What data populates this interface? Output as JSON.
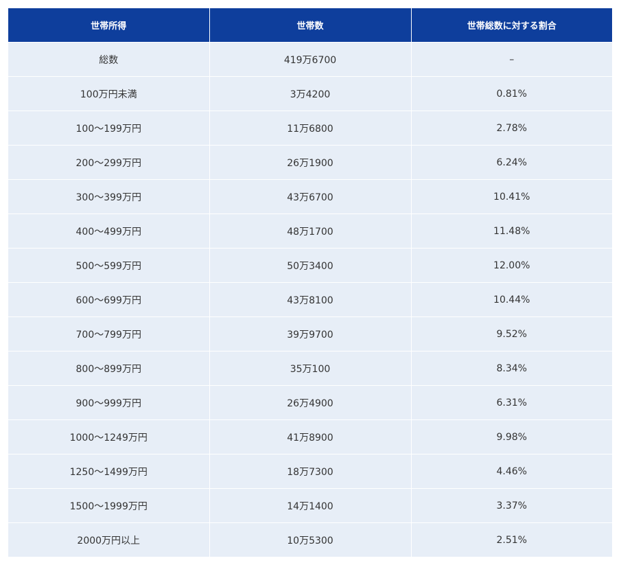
{
  "table": {
    "headers": [
      "世帯所得",
      "世帯数",
      "世帯総数に対する割合"
    ],
    "rows": [
      [
        "総数",
        "419万6700",
        "–"
      ],
      [
        "100万円未満",
        "3万4200",
        "0.81%"
      ],
      [
        "100～199万円",
        "11万6800",
        "2.78%"
      ],
      [
        "200～299万円",
        "26万1900",
        "6.24%"
      ],
      [
        "300～399万円",
        "43万6700",
        "10.41%"
      ],
      [
        "400～499万円",
        "48万1700",
        "11.48%"
      ],
      [
        "500～599万円",
        "50万3400",
        "12.00%"
      ],
      [
        "600～699万円",
        "43万8100",
        "10.44%"
      ],
      [
        "700～799万円",
        "39万9700",
        "9.52%"
      ],
      [
        "800～899万円",
        "35万100",
        "8.34%"
      ],
      [
        "900～999万円",
        "26万4900",
        "6.31%"
      ],
      [
        "1000～1249万円",
        "41万8900",
        "9.98%"
      ],
      [
        "1250～1499万円",
        "18万7300",
        "4.46%"
      ],
      [
        "1500～1999万円",
        "14万1400",
        "3.37%"
      ],
      [
        "2000万円以上",
        "10万5300",
        "2.51%"
      ]
    ]
  },
  "colors": {
    "header_bg": "#0e3e9c",
    "row_bg": "#e7eef7"
  }
}
